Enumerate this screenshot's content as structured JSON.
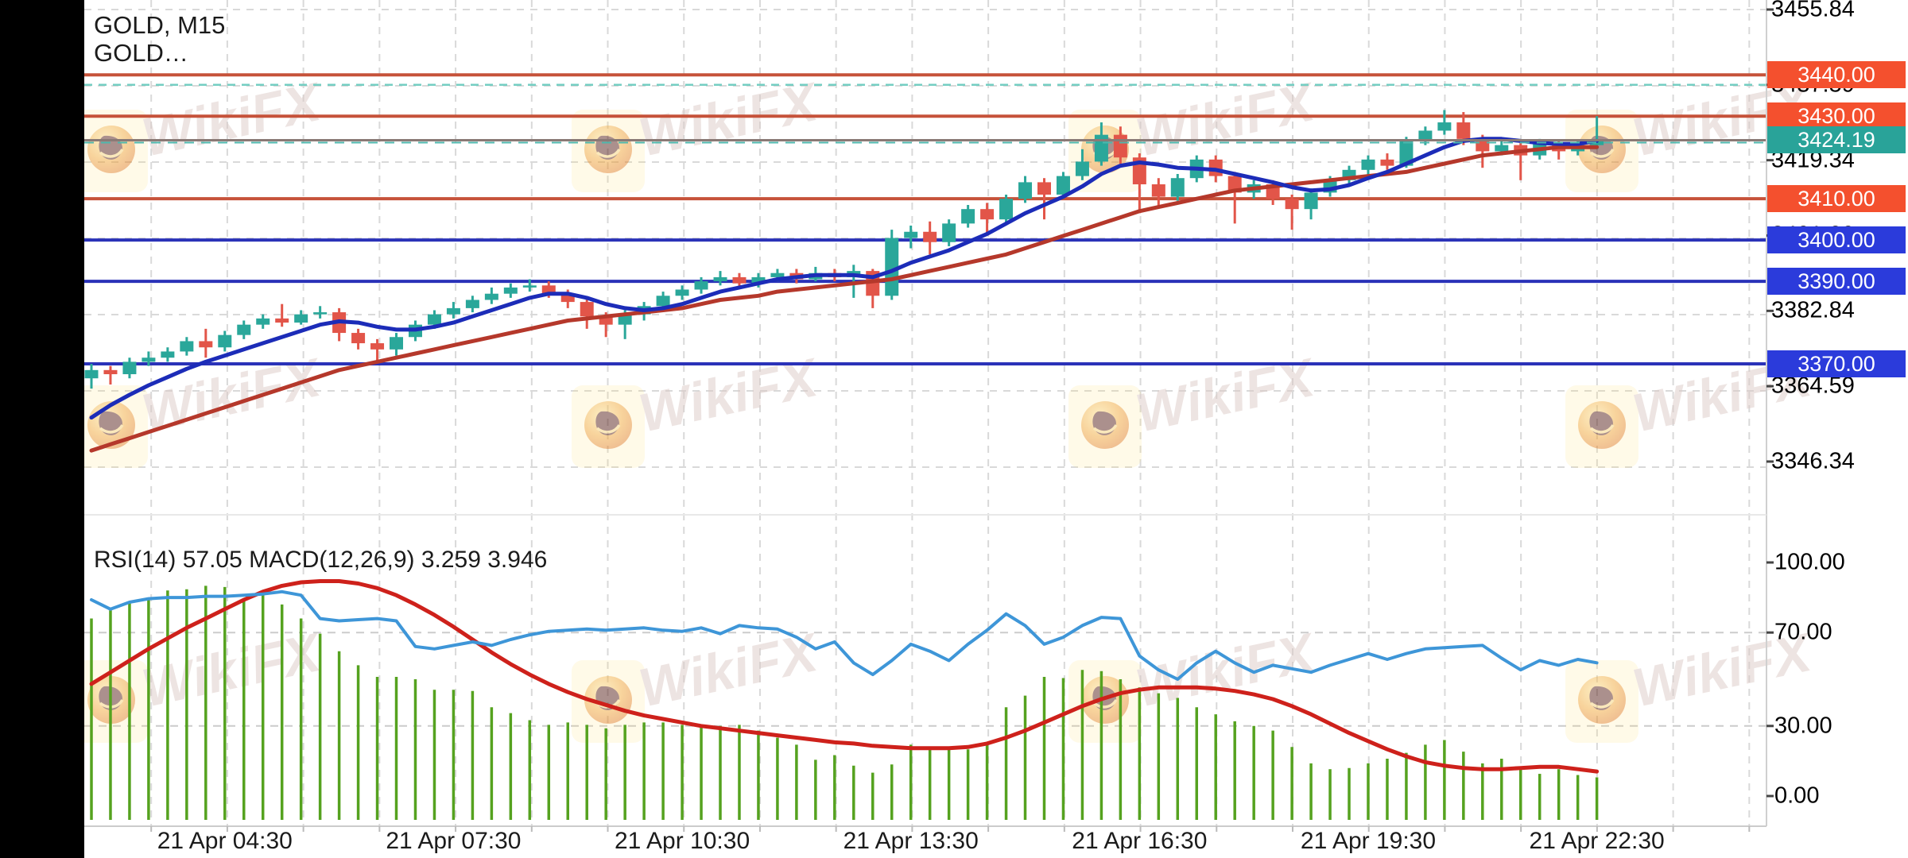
{
  "header": {
    "symbol_timeframe": "GOLD, M15",
    "symbol_sub": "GOLD…"
  },
  "indicator_label": "RSI(14) 57.05 MACD(12,26,9) 3.259 3.946",
  "watermark": {
    "text": "WikiFX"
  },
  "colors": {
    "background": "#ffffff",
    "grid": "#d9d9d9",
    "candle_up": "#2aa79a",
    "candle_down": "#e25549",
    "ma_fast": "#1c2cb8",
    "ma_slow": "#b5382b",
    "level_orange": "#c6523a",
    "level_blue": "#2a32b8",
    "current_price_gray": "#8a7a76",
    "current_price_teal": "#4db6ac",
    "teal_dashed": "#74cec2",
    "rsi_line": "#3e96d8",
    "macd_signal": "#ce211b",
    "macd_hist": "#55a21f",
    "badge_orange": "#f4502e",
    "badge_blue": "#2b3bdb",
    "badge_teal": "#29a399"
  },
  "price_axis": {
    "tick_labels": [
      "3455.84",
      "3437.59",
      "3419.34",
      "3401.09",
      "3382.84",
      "3364.59",
      "3346.34"
    ],
    "tick_values": [
      3455.84,
      3437.59,
      3419.34,
      3401.09,
      3382.84,
      3364.59,
      3346.34
    ],
    "badges": [
      {
        "label": "3440.00",
        "price": 3440.0,
        "color": "orange"
      },
      {
        "label": "3430.00",
        "price": 3430.0,
        "color": "orange"
      },
      {
        "label": "3424.19",
        "price": 3424.19,
        "color": "teal"
      },
      {
        "label": "3410.00",
        "price": 3410.0,
        "color": "orange"
      },
      {
        "label": "3400.00",
        "price": 3400.0,
        "color": "blue"
      },
      {
        "label": "3390.00",
        "price": 3390.0,
        "color": "blue"
      },
      {
        "label": "3370.00",
        "price": 3370.0,
        "color": "blue"
      }
    ]
  },
  "indicator_axis": {
    "tick_labels": [
      "100.00",
      "70.00",
      "30.00",
      "0.00"
    ],
    "tick_values": [
      100,
      70,
      30,
      0
    ],
    "dashed_levels": [
      70,
      30
    ]
  },
  "time_axis": {
    "labels": [
      "21 Apr 04:30",
      "21 Apr 07:30",
      "21 Apr 10:30",
      "21 Apr 13:30",
      "21 Apr 16:30",
      "21 Apr 19:30",
      "21 Apr 22:30"
    ]
  },
  "chart_data": {
    "type": "candlestick",
    "title": "GOLD, M15",
    "symbol": "GOLD",
    "timeframe": "M15",
    "last_price": 3424.19,
    "price_axis_range": [
      3340,
      3458
    ],
    "levels": {
      "resistance_orange": [
        3440.0,
        3430.0,
        3410.0
      ],
      "support_blue": [
        3400.0,
        3390.0,
        3370.0
      ],
      "teal_dashed_level": 3437.6,
      "current_price": 3424.19
    },
    "candles_ohlc": [
      [
        3366.5,
        3370.0,
        3364.0,
        3368.5
      ],
      [
        3368.5,
        3369.5,
        3365.0,
        3367.5
      ],
      [
        3367.5,
        3371.5,
        3366.5,
        3370.5
      ],
      [
        3370.5,
        3373.0,
        3369.5,
        3371.5
      ],
      [
        3371.5,
        3374.0,
        3370.5,
        3373.0
      ],
      [
        3373.0,
        3376.5,
        3372.0,
        3375.5
      ],
      [
        3375.5,
        3378.5,
        3371.5,
        3374.0
      ],
      [
        3374.0,
        3378.0,
        3373.0,
        3377.0
      ],
      [
        3377.0,
        3380.5,
        3376.0,
        3379.5
      ],
      [
        3379.5,
        3382.0,
        3378.5,
        3381.0
      ],
      [
        3381.0,
        3384.5,
        3379.0,
        3380.0
      ],
      [
        3380.0,
        3383.0,
        3379.5,
        3382.0
      ],
      [
        3382.0,
        3384.0,
        3381.0,
        3382.5
      ],
      [
        3382.5,
        3383.5,
        3375.5,
        3377.5
      ],
      [
        3377.5,
        3378.5,
        3373.5,
        3375.0
      ],
      [
        3375.0,
        3376.0,
        3370.5,
        3373.5
      ],
      [
        3373.5,
        3377.5,
        3372.0,
        3376.5
      ],
      [
        3376.5,
        3380.5,
        3375.5,
        3379.5
      ],
      [
        3379.5,
        3383.0,
        3378.5,
        3382.0
      ],
      [
        3382.0,
        3385.0,
        3381.0,
        3383.5
      ],
      [
        3383.5,
        3386.5,
        3382.5,
        3385.5
      ],
      [
        3385.5,
        3388.5,
        3384.5,
        3387.0
      ],
      [
        3387.0,
        3389.5,
        3386.0,
        3388.5
      ],
      [
        3388.5,
        3390.5,
        3387.5,
        3389.0
      ],
      [
        3389.0,
        3390.0,
        3386.0,
        3387.0
      ],
      [
        3387.0,
        3388.0,
        3383.5,
        3385.0
      ],
      [
        3385.0,
        3386.0,
        3378.5,
        3381.5
      ],
      [
        3381.5,
        3382.5,
        3376.5,
        3379.5
      ],
      [
        3379.5,
        3383.0,
        3376.0,
        3382.0
      ],
      [
        3382.0,
        3385.0,
        3380.5,
        3384.0
      ],
      [
        3384.0,
        3387.5,
        3383.0,
        3386.5
      ],
      [
        3386.5,
        3389.0,
        3385.5,
        3388.0
      ],
      [
        3388.0,
        3391.0,
        3387.0,
        3390.0
      ],
      [
        3390.0,
        3392.5,
        3389.0,
        3391.0
      ],
      [
        3391.0,
        3392.0,
        3388.5,
        3389.5
      ],
      [
        3389.5,
        3392.0,
        3388.5,
        3391.0
      ],
      [
        3391.0,
        3393.0,
        3390.0,
        3392.0
      ],
      [
        3392.0,
        3393.0,
        3389.5,
        3390.5
      ],
      [
        3390.5,
        3393.5,
        3390.0,
        3392.0
      ],
      [
        3392.0,
        3393.0,
        3390.0,
        3391.0
      ],
      [
        3391.0,
        3394.0,
        3386.0,
        3392.5
      ],
      [
        3392.5,
        3393.0,
        3383.5,
        3386.5
      ],
      [
        3386.5,
        3402.5,
        3385.5,
        3400.5
      ],
      [
        3400.5,
        3403.5,
        3398.0,
        3402.0
      ],
      [
        3402.0,
        3404.5,
        3396.5,
        3399.5
      ],
      [
        3399.5,
        3405.0,
        3398.5,
        3404.0
      ],
      [
        3404.0,
        3408.5,
        3403.0,
        3407.5
      ],
      [
        3407.5,
        3409.0,
        3401.5,
        3405.0
      ],
      [
        3405.0,
        3411.0,
        3404.0,
        3410.0
      ],
      [
        3410.0,
        3415.5,
        3409.0,
        3414.0
      ],
      [
        3414.0,
        3415.0,
        3405.0,
        3411.0
      ],
      [
        3411.0,
        3416.5,
        3410.0,
        3415.5
      ],
      [
        3415.5,
        3422.0,
        3414.5,
        3419.0
      ],
      [
        3419.0,
        3428.5,
        3418.0,
        3425.5
      ],
      [
        3425.5,
        3427.5,
        3418.5,
        3420.0
      ],
      [
        3420.0,
        3421.0,
        3406.5,
        3413.5
      ],
      [
        3413.5,
        3415.0,
        3408.0,
        3410.5
      ],
      [
        3410.5,
        3416.0,
        3409.5,
        3415.0
      ],
      [
        3415.0,
        3420.5,
        3414.0,
        3419.5
      ],
      [
        3419.5,
        3420.5,
        3414.0,
        3415.5
      ],
      [
        3415.5,
        3416.5,
        3404.0,
        3411.5
      ],
      [
        3411.5,
        3414.5,
        3410.0,
        3413.5
      ],
      [
        3413.5,
        3414.5,
        3408.5,
        3410.0
      ],
      [
        3410.0,
        3411.0,
        3402.5,
        3407.5
      ],
      [
        3407.5,
        3412.5,
        3405.0,
        3411.5
      ],
      [
        3411.5,
        3415.5,
        3410.5,
        3414.5
      ],
      [
        3414.5,
        3418.0,
        3413.5,
        3417.0
      ],
      [
        3417.0,
        3420.5,
        3415.5,
        3419.5
      ],
      [
        3419.5,
        3421.0,
        3417.0,
        3418.0
      ],
      [
        3418.0,
        3425.0,
        3417.5,
        3424.0
      ],
      [
        3424.0,
        3427.5,
        3423.0,
        3426.5
      ],
      [
        3426.5,
        3431.5,
        3425.5,
        3428.5
      ],
      [
        3428.5,
        3431.0,
        3423.0,
        3424.5
      ],
      [
        3424.5,
        3425.5,
        3417.5,
        3421.5
      ],
      [
        3421.5,
        3424.5,
        3420.5,
        3423.0
      ],
      [
        3423.0,
        3423.5,
        3414.5,
        3420.5
      ],
      [
        3420.5,
        3424.5,
        3419.5,
        3423.5
      ],
      [
        3423.5,
        3424.0,
        3419.5,
        3421.5
      ],
      [
        3421.5,
        3424.0,
        3420.5,
        3423.0
      ],
      [
        3423.0,
        3430.0,
        3422.0,
        3424.2
      ]
    ],
    "ma_fast": [
      3357.0,
      3360.0,
      3362.5,
      3364.8,
      3366.8,
      3368.8,
      3370.5,
      3372.0,
      3373.5,
      3375.0,
      3376.5,
      3378.0,
      3379.5,
      3380.3,
      3380.0,
      3379.0,
      3378.3,
      3378.3,
      3379.0,
      3380.0,
      3381.5,
      3383.0,
      3384.5,
      3386.0,
      3387.0,
      3387.0,
      3386.0,
      3384.5,
      3383.5,
      3383.0,
      3383.5,
      3384.5,
      3386.0,
      3387.5,
      3388.5,
      3389.5,
      3390.5,
      3391.0,
      3391.5,
      3391.5,
      3391.5,
      3391.0,
      3392.5,
      3394.5,
      3396.0,
      3397.5,
      3399.5,
      3401.5,
      3404.0,
      3406.5,
      3408.5,
      3410.5,
      3413.0,
      3416.0,
      3418.0,
      3418.8,
      3418.3,
      3417.5,
      3417.3,
      3417.0,
      3416.0,
      3415.0,
      3414.0,
      3412.8,
      3412.0,
      3412.3,
      3413.3,
      3415.0,
      3416.5,
      3418.5,
      3420.5,
      3422.5,
      3424.0,
      3424.5,
      3424.5,
      3424.0,
      3423.5,
      3423.3,
      3423.3,
      3424.0
    ],
    "ma_slow": [
      3349.0,
      3350.5,
      3352.0,
      3353.5,
      3355.0,
      3356.5,
      3358.0,
      3359.5,
      3361.0,
      3362.5,
      3364.0,
      3365.5,
      3367.0,
      3368.5,
      3369.5,
      3370.5,
      3371.5,
      3372.5,
      3373.5,
      3374.5,
      3375.5,
      3376.5,
      3377.5,
      3378.5,
      3379.5,
      3380.5,
      3381.0,
      3381.5,
      3382.0,
      3382.5,
      3383.0,
      3383.5,
      3384.5,
      3385.5,
      3386.0,
      3386.5,
      3387.5,
      3388.0,
      3388.5,
      3389.0,
      3389.5,
      3390.0,
      3390.5,
      3391.5,
      3392.5,
      3393.5,
      3394.5,
      3395.5,
      3396.5,
      3398.0,
      3399.5,
      3401.0,
      3402.5,
      3404.0,
      3405.5,
      3407.0,
      3408.0,
      3409.0,
      3410.0,
      3411.0,
      3412.0,
      3412.5,
      3413.0,
      3413.5,
      3414.0,
      3414.5,
      3415.0,
      3415.5,
      3416.0,
      3416.5,
      3417.5,
      3418.5,
      3419.5,
      3420.5,
      3421.0,
      3421.5,
      3422.0,
      3422.5,
      3422.5,
      3422.5
    ],
    "rsi": {
      "period": 14,
      "current": 57.05,
      "values": [
        84,
        80,
        83,
        84.5,
        85,
        85,
        85.5,
        85.5,
        86,
        86.5,
        87.5,
        86,
        76,
        75,
        75.5,
        76,
        75,
        64,
        63,
        64.5,
        66,
        64.5,
        67,
        69,
        70.5,
        71,
        71.5,
        71,
        71.5,
        72,
        71,
        70.5,
        72,
        69.5,
        73,
        72,
        71.5,
        68,
        63,
        66,
        57,
        52,
        58,
        65,
        62,
        58,
        65,
        71,
        78,
        73,
        65,
        68,
        73,
        76.5,
        76,
        60,
        54,
        50,
        57,
        62,
        57,
        53,
        56,
        54.5,
        53,
        56,
        58.5,
        61,
        58.5,
        61,
        63,
        63.5,
        64,
        64.5,
        59,
        54,
        58,
        56,
        58.5,
        57.05
      ]
    },
    "macd": {
      "params": "12,26,9",
      "current_macd": 3.259,
      "current_signal": 3.946,
      "signal_line": [
        48,
        53,
        58,
        63,
        67.5,
        72,
        76,
        80,
        84,
        87.5,
        90,
        91.5,
        92,
        92,
        91,
        89,
        86,
        82,
        77.5,
        72.5,
        67,
        61.5,
        56.5,
        52,
        48,
        44.5,
        41.5,
        39,
        36.5,
        34.5,
        33,
        31.5,
        30,
        29,
        28,
        27,
        26,
        25,
        24,
        23,
        22.5,
        21.5,
        21,
        20.5,
        20.5,
        20.5,
        21,
        22.5,
        25,
        28,
        31.5,
        35,
        38.5,
        41.5,
        44,
        45.5,
        46.5,
        46.5,
        46.5,
        46,
        45,
        43.5,
        41.5,
        38.5,
        35,
        31,
        27,
        23.5,
        20,
        17,
        14.5,
        13,
        12,
        11.5,
        11.5,
        12,
        12.5,
        12.5,
        11.5,
        10.5
      ],
      "histogram": [
        76,
        79.5,
        83,
        85,
        88,
        88.5,
        90,
        89.5,
        84.5,
        86.5,
        82,
        76,
        69.5,
        62,
        56,
        51,
        51,
        50,
        45.5,
        45.5,
        45,
        38,
        35.5,
        32.5,
        30.5,
        31.5,
        30.5,
        29,
        30.5,
        31.5,
        31.5,
        30.5,
        30.5,
        30,
        30.5,
        28,
        25,
        22,
        15.5,
        17.5,
        13,
        10,
        13.5,
        22,
        21,
        20.5,
        20,
        22.5,
        38,
        43,
        51,
        50.5,
        54,
        53.5,
        50,
        46.5,
        44,
        42,
        38,
        35,
        32,
        30,
        28,
        21,
        14,
        11.5,
        12,
        14,
        16,
        18.5,
        22,
        24,
        19,
        14,
        16,
        11.5,
        9.5,
        11.5,
        9,
        8
      ]
    }
  }
}
